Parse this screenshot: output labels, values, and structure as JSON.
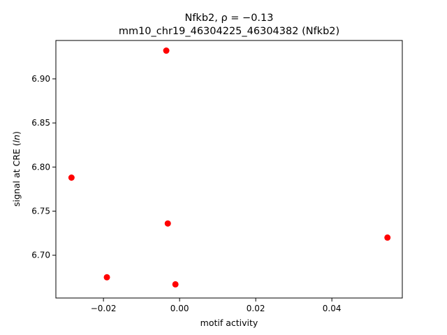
{
  "chart_data": {
    "type": "scatter",
    "title_line1": "Nfkb2, ρ = −0.13",
    "title_line2": "mm10_chr19_46304225_46304382 (Nfkb2)",
    "xlabel": "motif activity",
    "ylabel": "signal at CRE (ln)",
    "xlim": [
      -0.0325,
      0.0585
    ],
    "ylim": [
      6.6515,
      6.9435
    ],
    "xticks": [
      -0.02,
      0.0,
      0.02,
      0.04
    ],
    "xtick_labels": [
      "−0.02",
      "0.00",
      "0.02",
      "0.04"
    ],
    "yticks": [
      6.7,
      6.75,
      6.8,
      6.85,
      6.9
    ],
    "ytick_labels": [
      "6.70",
      "6.75",
      "6.80",
      "6.85",
      "6.90"
    ],
    "grid": false,
    "marker_color": "#ff0000",
    "points": [
      {
        "x": -0.0284,
        "y": 6.788
      },
      {
        "x": -0.0191,
        "y": 6.675
      },
      {
        "x": -0.0035,
        "y": 6.932
      },
      {
        "x": -0.0031,
        "y": 6.736
      },
      {
        "x": -0.0011,
        "y": 6.667
      },
      {
        "x": 0.0546,
        "y": 6.72
      }
    ]
  }
}
